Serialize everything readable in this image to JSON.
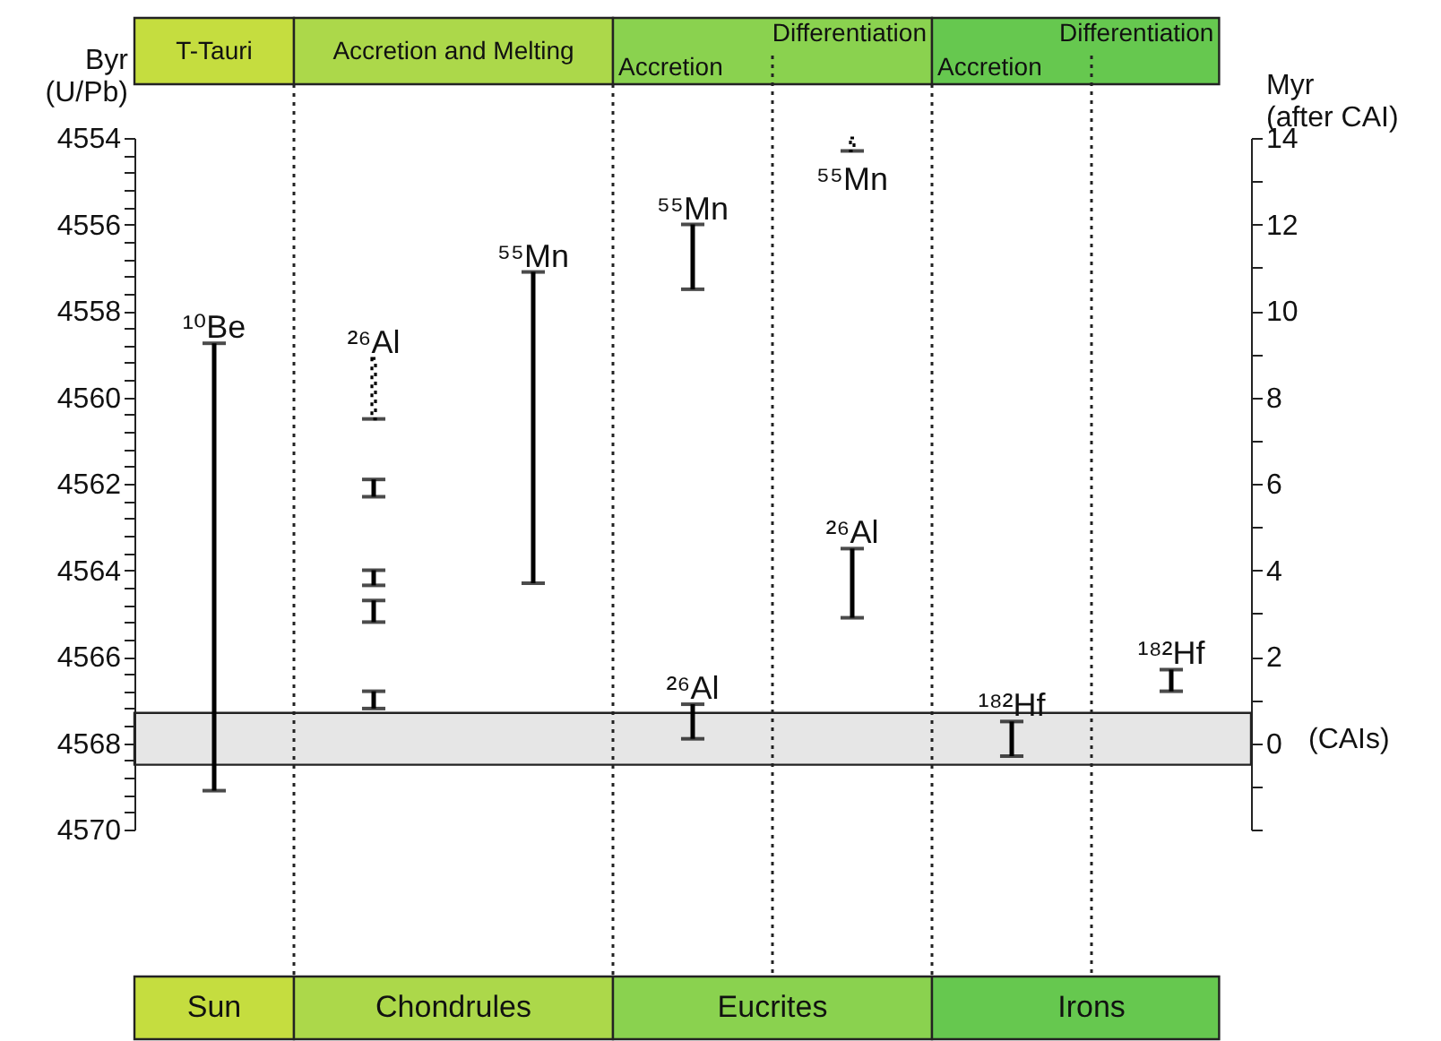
{
  "chart_data": {
    "type": "bar",
    "ylabel": "Byr (U/Pb)",
    "y2label": "Myr (after CAI)",
    "categories": [
      "Sun",
      "Chondrules",
      null,
      "Eucrites",
      null,
      "Irons",
      null
    ],
    "ylim": [
      4570,
      4554
    ],
    "yticks": [
      {
        "value": 4570,
        "label": "4570"
      },
      {
        "value": 4569.6,
        "label": null
      },
      {
        "value": 4569.2,
        "label": null
      },
      {
        "value": 4568.8,
        "label": null
      },
      {
        "value": 4568.4,
        "label": null
      },
      {
        "value": 4568,
        "label": "4568"
      },
      {
        "value": 4567.6,
        "label": null
      },
      {
        "value": 4567.2,
        "label": null
      },
      {
        "value": 4566.8,
        "label": null
      },
      {
        "value": 4566.4,
        "label": null
      },
      {
        "value": 4566,
        "label": "4566"
      },
      {
        "value": 4565.6,
        "label": null
      },
      {
        "value": 4565.2,
        "label": null
      },
      {
        "value": 4564.8,
        "label": null
      },
      {
        "value": 4564.4,
        "label": null
      },
      {
        "value": 4564,
        "label": "4564"
      },
      {
        "value": 4563.6,
        "label": null
      },
      {
        "value": 4563.2,
        "label": null
      },
      {
        "value": 4562.8,
        "label": null
      },
      {
        "value": 4562.4,
        "label": null
      },
      {
        "value": 4562,
        "label": "4562"
      },
      {
        "value": 4561.6,
        "label": null
      },
      {
        "value": 4561.2,
        "label": null
      },
      {
        "value": 4560.8,
        "label": null
      },
      {
        "value": 4560.4,
        "label": null
      },
      {
        "value": 4560,
        "label": "4560"
      },
      {
        "value": 4559.6,
        "label": null
      },
      {
        "value": 4559.2,
        "label": null
      },
      {
        "value": 4558.8,
        "label": null
      },
      {
        "value": 4558.4,
        "label": null
      },
      {
        "value": 4558,
        "label": "4558"
      },
      {
        "value": 4557.6,
        "label": null
      },
      {
        "value": 4557.2,
        "label": null
      },
      {
        "value": 4556.8,
        "label": null
      },
      {
        "value": 4556.4,
        "label": null
      },
      {
        "value": 4556,
        "label": "4556"
      },
      {
        "value": 4555.6,
        "label": null
      },
      {
        "value": 4555.2,
        "label": null
      },
      {
        "value": 4554.8,
        "label": null
      },
      {
        "value": 4554.4,
        "label": null
      },
      {
        "value": 4554,
        "label": "4554"
      }
    ],
    "y2lim": [
      -2,
      14
    ],
    "y2ticks": [
      {
        "value": -2,
        "label": null
      },
      {
        "value": -1,
        "label": null
      },
      0,
      {
        "value": 1,
        "label": null
      },
      2,
      {
        "value": 3,
        "label": null
      },
      4,
      {
        "value": 5,
        "label": null
      },
      6,
      {
        "value": 7,
        "label": null
      },
      8,
      {
        "value": 9,
        "label": null
      },
      10,
      {
        "value": 11,
        "label": null
      },
      12,
      {
        "value": 13,
        "label": null
      },
      14
    ],
    "series": [
      {
        "name": "¹⁰Be",
        "color": "#000000",
        "base": [
          4558.75,
          null,
          null,
          null,
          null,
          null,
          null
        ],
        "values": [
          10.35,
          null,
          null,
          null,
          null,
          null,
          null
        ]
      },
      {
        "name": "²⁶Al",
        "color": "#000000",
        "line_style": "dotted",
        "base": [
          null,
          4559.1,
          null,
          null,
          null,
          null,
          null
        ],
        "values": [
          null,
          1.4,
          null,
          null,
          null,
          null,
          null
        ]
      },
      {
        "color": "#000000",
        "base": [
          null,
          4561.9,
          null,
          null,
          null,
          null,
          null
        ],
        "values": [
          null,
          0.4,
          null,
          null,
          null,
          null,
          null
        ]
      },
      {
        "color": "#000000",
        "base": [
          null,
          4564.0,
          null,
          null,
          null,
          null,
          null
        ],
        "values": [
          null,
          0.35,
          null,
          null,
          null,
          null,
          null
        ]
      },
      {
        "color": "#000000",
        "base": [
          null,
          4564.7,
          null,
          null,
          null,
          null,
          null
        ],
        "values": [
          null,
          0.5,
          null,
          null,
          null,
          null,
          null
        ]
      },
      {
        "color": "#000000",
        "base": [
          null,
          4566.8,
          null,
          null,
          null,
          null,
          null
        ],
        "values": [
          null,
          0.4,
          null,
          null,
          null,
          null,
          null
        ]
      },
      {
        "name": "⁵⁵Mn",
        "color": "#000000",
        "base": [
          null,
          null,
          4557.1,
          null,
          null,
          null,
          null
        ],
        "values": [
          null,
          null,
          7.2,
          null,
          null,
          null,
          null
        ]
      },
      {
        "name": "⁵⁵Mn",
        "color": "#000000",
        "base": [
          null,
          null,
          null,
          4556.0,
          null,
          null,
          null
        ],
        "values": [
          null,
          null,
          null,
          1.5,
          null,
          null,
          null
        ]
      },
      {
        "name": "²⁶Al",
        "color": "#000000",
        "base": [
          null,
          null,
          null,
          4567.1,
          null,
          null,
          null
        ],
        "values": [
          null,
          null,
          null,
          0.8,
          null,
          null,
          null
        ]
      },
      {
        "name": "⁵⁵Mn",
        "color": "#000000",
        "line_style": "dotted",
        "base": [
          null,
          null,
          null,
          null,
          4554.0,
          null,
          null
        ],
        "values": [
          null,
          null,
          null,
          null,
          0.3,
          null,
          null
        ]
      },
      {
        "name": "²⁶Al",
        "color": "#000000",
        "base": [
          null,
          null,
          null,
          null,
          4563.5,
          null,
          null
        ],
        "values": [
          null,
          null,
          null,
          null,
          1.6,
          null,
          null
        ]
      },
      {
        "name": "¹⁸²Hf",
        "color": "#000000",
        "base": [
          null,
          null,
          null,
          null,
          null,
          4567.5,
          null
        ],
        "values": [
          null,
          null,
          null,
          null,
          null,
          0.8,
          null
        ]
      },
      {
        "name": "¹⁸²Hf",
        "color": "#000000",
        "base": [
          null,
          null,
          null,
          null,
          null,
          null,
          4566.3
        ],
        "values": [
          null,
          null,
          null,
          null,
          null,
          null,
          0.5
        ]
      }
    ],
    "bands": [
      {
        "axis": "y",
        "from": 4567.3,
        "to": 4568.5,
        "label": "(CAIs)",
        "color": "#e6e6e6"
      }
    ],
    "annotations": [
      "T-Tauri",
      "Accretion and Melting",
      "Accretion",
      "Differentiation",
      "Accretion",
      "Differentiation"
    ],
    "grid": "x"
  }
}
